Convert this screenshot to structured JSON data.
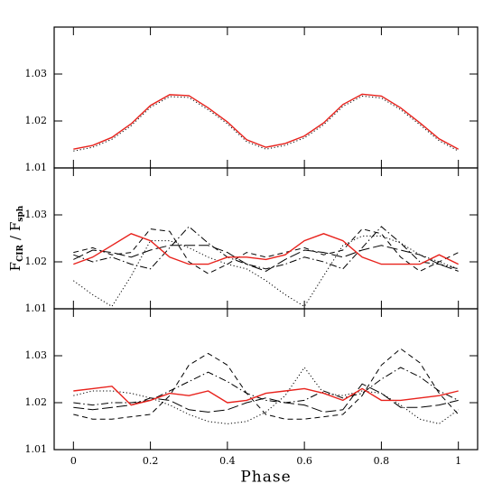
{
  "chart_data": [
    {
      "type": "line",
      "xlim": [
        -0.05,
        1.05
      ],
      "ylim": [
        1.01,
        1.04
      ],
      "yticks": [
        1.01,
        1.02,
        1.03
      ],
      "x": [
        0,
        0.05,
        0.1,
        0.15,
        0.2,
        0.25,
        0.3,
        0.35,
        0.4,
        0.45,
        0.5,
        0.55,
        0.6,
        0.65,
        0.7,
        0.75,
        0.8,
        0.85,
        0.9,
        0.95,
        1
      ],
      "series": [
        {
          "color": "#000000",
          "dash": "dotted",
          "values": [
            1.0136,
            1.0144,
            1.0161,
            1.019,
            1.0229,
            1.0252,
            1.025,
            1.0224,
            1.0194,
            1.0156,
            1.014,
            1.0148,
            1.0164,
            1.0192,
            1.0231,
            1.0253,
            1.0249,
            1.0224,
            1.0192,
            1.0158,
            1.0136
          ]
        },
        {
          "color": "#e8221c",
          "dash": "solid",
          "values": [
            1.014,
            1.0148,
            1.0165,
            1.0194,
            1.0233,
            1.0256,
            1.0254,
            1.0228,
            1.0198,
            1.016,
            1.0144,
            1.0152,
            1.0168,
            1.0196,
            1.0235,
            1.0257,
            1.0253,
            1.0228,
            1.0196,
            1.0162,
            1.014
          ]
        }
      ]
    },
    {
      "type": "line",
      "xlim": [
        -0.05,
        1.05
      ],
      "ylim": [
        1.01,
        1.04
      ],
      "yticks": [
        1.01,
        1.02,
        1.03
      ],
      "y_label": [
        "F",
        "CIR",
        "/",
        "F",
        "sph"
      ],
      "x": [
        0,
        0.05,
        0.1,
        0.15,
        0.2,
        0.25,
        0.3,
        0.35,
        0.4,
        0.45,
        0.5,
        0.55,
        0.6,
        0.65,
        0.7,
        0.75,
        0.8,
        0.85,
        0.9,
        0.95,
        1
      ],
      "series": [
        {
          "color": "#000000",
          "dash": "dotted",
          "values": [
            1.016,
            1.013,
            1.0105,
            1.017,
            1.0245,
            1.0245,
            1.023,
            1.021,
            1.0195,
            1.0185,
            1.016,
            1.013,
            1.0105,
            1.017,
            1.0235,
            1.0255,
            1.0255,
            1.024,
            1.0215,
            1.02,
            1.0185
          ]
        },
        {
          "color": "#000000",
          "dash": "dashed",
          "values": [
            1.022,
            1.023,
            1.0215,
            1.022,
            1.027,
            1.0265,
            1.02,
            1.0175,
            1.0195,
            1.022,
            1.021,
            1.022,
            1.023,
            1.0215,
            1.0225,
            1.027,
            1.026,
            1.021,
            1.018,
            1.02,
            1.022
          ]
        },
        {
          "color": "#000000",
          "dash": "dashdot",
          "values": [
            1.0215,
            1.02,
            1.021,
            1.0195,
            1.0185,
            1.023,
            1.0275,
            1.024,
            1.021,
            1.0195,
            1.0185,
            1.0195,
            1.021,
            1.02,
            1.0185,
            1.023,
            1.0275,
            1.024,
            1.02,
            1.0195,
            1.0185
          ]
        },
        {
          "color": "#000000",
          "dash": "longdash",
          "values": [
            1.0205,
            1.0225,
            1.022,
            1.021,
            1.0225,
            1.0235,
            1.0235,
            1.0235,
            1.022,
            1.0195,
            1.018,
            1.0205,
            1.0225,
            1.022,
            1.021,
            1.0225,
            1.0235,
            1.0225,
            1.0215,
            1.0195,
            1.018
          ]
        },
        {
          "color": "#e8221c",
          "dash": "solid",
          "values": [
            1.0195,
            1.021,
            1.0235,
            1.026,
            1.0245,
            1.021,
            1.0195,
            1.0195,
            1.021,
            1.021,
            1.0205,
            1.0215,
            1.0245,
            1.026,
            1.0245,
            1.021,
            1.0195,
            1.0195,
            1.0195,
            1.0215,
            1.0195
          ]
        }
      ]
    },
    {
      "type": "line",
      "xlim": [
        -0.05,
        1.05
      ],
      "ylim": [
        1.01,
        1.04
      ],
      "yticks": [
        1.01,
        1.02,
        1.03
      ],
      "xticks": [
        0,
        0.2,
        0.4,
        0.6,
        0.8,
        1
      ],
      "x_label": "Phase",
      "x": [
        0,
        0.05,
        0.1,
        0.15,
        0.2,
        0.25,
        0.3,
        0.35,
        0.4,
        0.45,
        0.5,
        0.55,
        0.6,
        0.65,
        0.7,
        0.75,
        0.8,
        0.85,
        0.9,
        0.95,
        1
      ],
      "series": [
        {
          "color": "#000000",
          "dash": "dashed",
          "values": [
            1.0175,
            1.0165,
            1.0165,
            1.017,
            1.0175,
            1.0215,
            1.028,
            1.0305,
            1.028,
            1.022,
            1.0175,
            1.0165,
            1.0165,
            1.017,
            1.0175,
            1.0215,
            1.028,
            1.0315,
            1.0285,
            1.022,
            1.0175
          ]
        },
        {
          "color": "#000000",
          "dash": "dotted",
          "values": [
            1.0215,
            1.0225,
            1.0225,
            1.022,
            1.021,
            1.0195,
            1.0175,
            1.016,
            1.0155,
            1.016,
            1.018,
            1.0215,
            1.0275,
            1.022,
            1.0215,
            1.0225,
            1.022,
            1.0195,
            1.0165,
            1.0155,
            1.0185
          ]
        },
        {
          "color": "#000000",
          "dash": "dashdot",
          "values": [
            1.02,
            1.0195,
            1.02,
            1.02,
            1.0205,
            1.0225,
            1.0245,
            1.0265,
            1.0245,
            1.022,
            1.0205,
            1.02,
            1.0205,
            1.0225,
            1.021,
            1.022,
            1.025,
            1.0275,
            1.0255,
            1.0225,
            1.0205
          ]
        },
        {
          "color": "#000000",
          "dash": "longdash",
          "values": [
            1.019,
            1.0185,
            1.019,
            1.0195,
            1.021,
            1.0205,
            1.0185,
            1.018,
            1.0185,
            1.02,
            1.021,
            1.02,
            1.0195,
            1.018,
            1.0185,
            1.024,
            1.022,
            1.019,
            1.019,
            1.0195,
            1.0205
          ]
        },
        {
          "color": "#e8221c",
          "dash": "solid",
          "values": [
            1.0225,
            1.023,
            1.0235,
            1.0195,
            1.0205,
            1.022,
            1.0215,
            1.0225,
            1.02,
            1.0205,
            1.022,
            1.0225,
            1.023,
            1.022,
            1.0205,
            1.023,
            1.0205,
            1.0205,
            1.021,
            1.0215,
            1.0225
          ]
        }
      ]
    }
  ]
}
